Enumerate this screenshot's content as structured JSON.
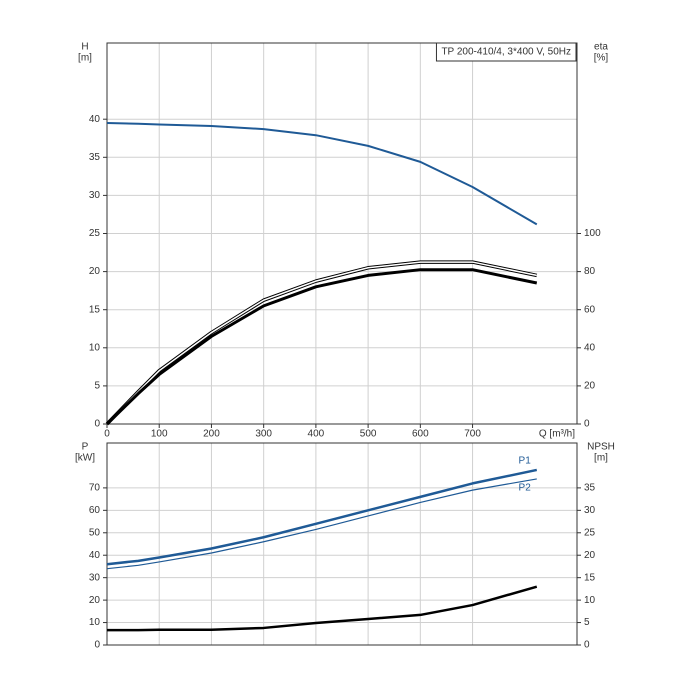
{
  "chart_data": [
    {
      "type": "line",
      "title": "TP 200-410/4, 3*400 V, 50Hz",
      "ylabel": "H",
      "yunit": "[m]",
      "y2label": "eta",
      "y2unit": "[%]",
      "xlabel": "Q [m³/h]",
      "x": [
        0,
        60,
        100,
        200,
        300,
        400,
        500,
        600,
        700,
        823
      ],
      "series": [
        {
          "color": "#1f5a96",
          "values": [
            39.5,
            39.4,
            39.3,
            39.1,
            38.7,
            37.9,
            36.5,
            34.4,
            31.1,
            26.2
          ]
        },
        {
          "color": "#000000",
          "axis": "y2",
          "values": [
            0,
            17,
            28,
            48,
            65,
            75,
            82,
            85,
            85,
            78
          ]
        },
        {
          "color": "#000000",
          "axis": "y2",
          "values": [
            0,
            16,
            26,
            46,
            62,
            72,
            78,
            81,
            81,
            74
          ]
        }
      ],
      "xlim": [
        0,
        900
      ],
      "xticks": [
        0,
        100,
        200,
        300,
        400,
        500,
        600,
        700
      ],
      "ylim": [
        0,
        50
      ],
      "yticks": [
        0,
        5,
        10,
        15,
        20,
        25,
        30,
        35,
        40
      ],
      "y2lim": [
        0,
        200
      ],
      "y2ticks": [
        0,
        20,
        40,
        60,
        80,
        100
      ],
      "grid": true
    },
    {
      "type": "line",
      "ylabel": "P",
      "yunit": "[kW]",
      "y2label": "NPSH",
      "y2unit": "[m]",
      "x": [
        0,
        60,
        100,
        200,
        300,
        400,
        500,
        600,
        700,
        823
      ],
      "series": [
        {
          "name": "P1",
          "color": "#1f5a96",
          "values": [
            36,
            37.5,
            39,
            43,
            48,
            54,
            60,
            66,
            72,
            78
          ]
        },
        {
          "name": "P2",
          "color": "#1f5a96",
          "values": [
            34,
            35.5,
            37,
            41,
            46,
            51.5,
            57.5,
            63.5,
            69,
            74
          ]
        },
        {
          "color": "#000000",
          "axis": "y2",
          "values": [
            3.3,
            3.3,
            3.4,
            3.4,
            3.8,
            4.9,
            5.8,
            6.7,
            8.9,
            13
          ]
        }
      ],
      "xlim": [
        0,
        900
      ],
      "ylim": [
        0,
        90
      ],
      "yticks": [
        0,
        10,
        20,
        30,
        40,
        50,
        60,
        70
      ],
      "y2lim": [
        0,
        45
      ],
      "y2ticks": [
        0,
        5,
        10,
        15,
        20,
        25,
        30,
        35
      ],
      "grid": true
    }
  ]
}
